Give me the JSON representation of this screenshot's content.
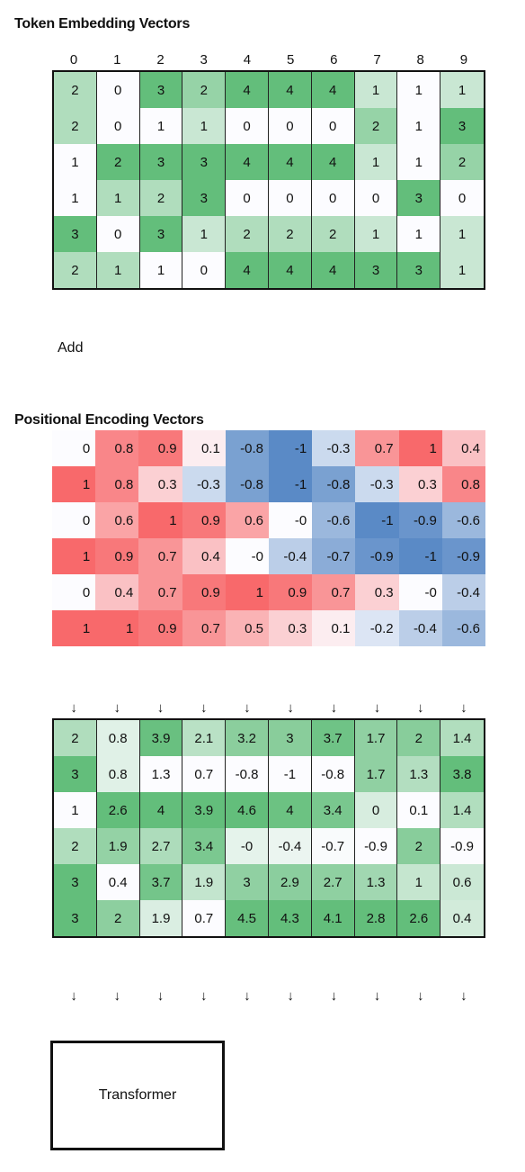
{
  "titles": {
    "token_embedding": "Token Embedding Vectors",
    "positional_encoding": "Positional Encoding Vectors"
  },
  "column_indices": [
    "0",
    "1",
    "2",
    "3",
    "4",
    "5",
    "6",
    "7",
    "8",
    "9"
  ],
  "add_label": "Add",
  "arrow_glyph": "↓",
  "transformer_label": "Transformer",
  "colors": {
    "green_high": "#63be7b",
    "red_high": "#f8696b",
    "blue_low": "#5a8ac6",
    "neutral": "#fcfcff"
  },
  "token_embedding": [
    [
      "2",
      "0",
      "3",
      "2",
      "4",
      "4",
      "4",
      "1",
      "1",
      "1"
    ],
    [
      "2",
      "0",
      "1",
      "1",
      "0",
      "0",
      "0",
      "2",
      "1",
      "3"
    ],
    [
      "1",
      "2",
      "3",
      "3",
      "4",
      "4",
      "4",
      "1",
      "1",
      "2"
    ],
    [
      "1",
      "1",
      "2",
      "3",
      "0",
      "0",
      "0",
      "0",
      "3",
      "0"
    ],
    [
      "3",
      "0",
      "3",
      "1",
      "2",
      "2",
      "2",
      "1",
      "1",
      "1"
    ],
    [
      "2",
      "1",
      "1",
      "0",
      "4",
      "4",
      "4",
      "3",
      "3",
      "1"
    ]
  ],
  "positional_encoding": [
    [
      "0",
      "0.8",
      "0.9",
      "0.1",
      "-0.8",
      "-1",
      "-0.3",
      "0.7",
      "1",
      "0.4"
    ],
    [
      "1",
      "0.8",
      "0.3",
      "-0.3",
      "-0.8",
      "-1",
      "-0.8",
      "-0.3",
      "0.3",
      "0.8"
    ],
    [
      "0",
      "0.6",
      "1",
      "0.9",
      "0.6",
      "-0",
      "-0.6",
      "-1",
      "-0.9",
      "-0.6"
    ],
    [
      "1",
      "0.9",
      "0.7",
      "0.4",
      "-0",
      "-0.4",
      "-0.7",
      "-0.9",
      "-1",
      "-0.9"
    ],
    [
      "0",
      "0.4",
      "0.7",
      "0.9",
      "1",
      "0.9",
      "0.7",
      "0.3",
      "-0",
      "-0.4"
    ],
    [
      "1",
      "1",
      "0.9",
      "0.7",
      "0.5",
      "0.3",
      "0.1",
      "-0.2",
      "-0.4",
      "-0.6"
    ]
  ],
  "sum_vectors": [
    [
      "2",
      "0.8",
      "3.9",
      "2.1",
      "3.2",
      "3",
      "3.7",
      "1.7",
      "2",
      "1.4"
    ],
    [
      "3",
      "0.8",
      "1.3",
      "0.7",
      "-0.8",
      "-1",
      "-0.8",
      "1.7",
      "1.3",
      "3.8"
    ],
    [
      "1",
      "2.6",
      "4",
      "3.9",
      "4.6",
      "4",
      "3.4",
      "0",
      "0.1",
      "1.4"
    ],
    [
      "2",
      "1.9",
      "2.7",
      "3.4",
      "-0",
      "-0.4",
      "-0.7",
      "-0.9",
      "2",
      "-0.9"
    ],
    [
      "3",
      "0.4",
      "3.7",
      "1.9",
      "3",
      "2.9",
      "2.7",
      "1.3",
      "1",
      "0.6"
    ],
    [
      "3",
      "2",
      "1.9",
      "0.7",
      "4.5",
      "4.3",
      "4.1",
      "2.8",
      "2.6",
      "0.4"
    ]
  ]
}
